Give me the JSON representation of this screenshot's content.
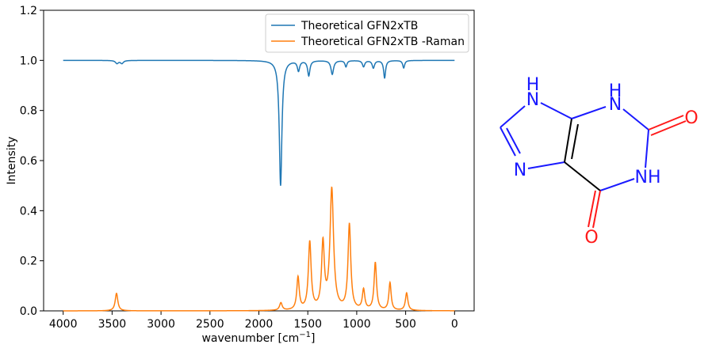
{
  "chart_data": {
    "type": "line",
    "xlabel": "wavenumber [cm",
    "xlabel_sup": "−1",
    "xlabel_end": "]",
    "ylabel": "Intensity",
    "xlim": [
      4200,
      -200
    ],
    "ylim": [
      0,
      1.2
    ],
    "x_ticks": [
      4000,
      3500,
      3000,
      2500,
      2000,
      1500,
      1000,
      500,
      0
    ],
    "y_ticks": [
      0.0,
      0.2,
      0.4,
      0.6,
      0.8,
      1.0,
      1.2
    ],
    "grid": false,
    "legend": "top-right",
    "series": [
      {
        "name": "Theoretical GFN2xTB",
        "color": "#1f77b4",
        "baseline": 1.0,
        "direction": -1,
        "peaks": [
          {
            "x": 3450,
            "h": 0.012,
            "w": 18
          },
          {
            "x": 3400,
            "h": 0.012,
            "w": 18
          },
          {
            "x": 1778,
            "h": 0.5,
            "w": 16
          },
          {
            "x": 1595,
            "h": 0.04,
            "w": 14
          },
          {
            "x": 1490,
            "h": 0.06,
            "w": 14
          },
          {
            "x": 1250,
            "h": 0.055,
            "w": 16
          },
          {
            "x": 1110,
            "h": 0.025,
            "w": 12
          },
          {
            "x": 930,
            "h": 0.025,
            "w": 14
          },
          {
            "x": 830,
            "h": 0.03,
            "w": 14
          },
          {
            "x": 715,
            "h": 0.07,
            "w": 12
          },
          {
            "x": 520,
            "h": 0.03,
            "w": 12
          }
        ]
      },
      {
        "name": "Theoretical GFN2xTB -Raman",
        "color": "#ff7f0e",
        "baseline": 0.0,
        "direction": 1,
        "peaks": [
          {
            "x": 3455,
            "h": 0.07,
            "w": 16
          },
          {
            "x": 1775,
            "h": 0.03,
            "w": 16
          },
          {
            "x": 1600,
            "h": 0.13,
            "w": 15
          },
          {
            "x": 1480,
            "h": 0.27,
            "w": 17
          },
          {
            "x": 1345,
            "h": 0.26,
            "w": 17
          },
          {
            "x": 1255,
            "h": 0.48,
            "w": 22
          },
          {
            "x": 1075,
            "h": 0.34,
            "w": 17
          },
          {
            "x": 930,
            "h": 0.08,
            "w": 15
          },
          {
            "x": 810,
            "h": 0.19,
            "w": 15
          },
          {
            "x": 660,
            "h": 0.11,
            "w": 14
          },
          {
            "x": 490,
            "h": 0.07,
            "w": 15
          }
        ]
      }
    ]
  },
  "molecule": {
    "atoms": [
      {
        "id": "n9",
        "label": "N",
        "h": "H",
        "color": "#1a1aff"
      },
      {
        "id": "n1",
        "label": "N",
        "h": "H",
        "color": "#1a1aff"
      },
      {
        "id": "o2",
        "label": "O",
        "color": "#ff1a1a"
      },
      {
        "id": "n7",
        "label": "N",
        "color": "#1a1aff"
      },
      {
        "id": "n3",
        "label": "NH",
        "color": "#1a1aff"
      },
      {
        "id": "o6",
        "label": "O",
        "color": "#ff1a1a"
      }
    ]
  }
}
